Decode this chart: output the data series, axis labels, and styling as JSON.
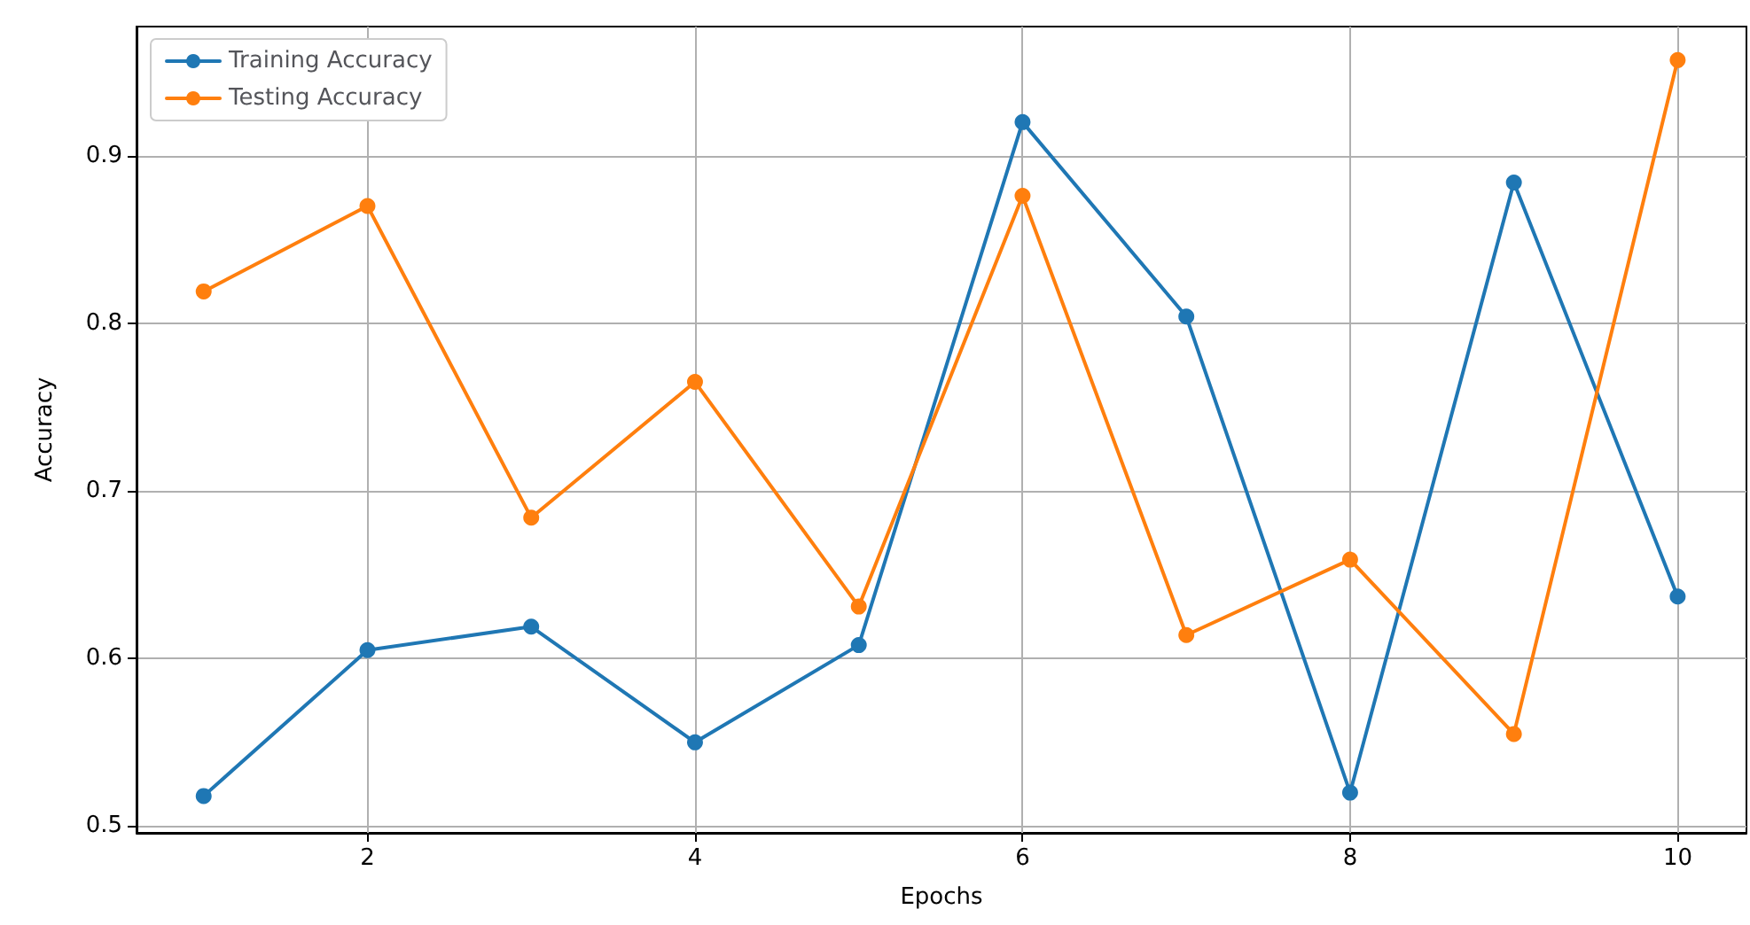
{
  "chart_data": {
    "type": "line",
    "xlabel": "Epochs",
    "ylabel": "Accuracy",
    "x": [
      1,
      2,
      3,
      4,
      5,
      6,
      7,
      8,
      9,
      10
    ],
    "series": [
      {
        "name": "Training Accuracy",
        "color": "#1f77b4",
        "values": [
          0.518,
          0.605,
          0.619,
          0.55,
          0.608,
          0.92,
          0.804,
          0.52,
          0.884,
          0.637
        ]
      },
      {
        "name": "Testing Accuracy",
        "color": "#ff7f0e",
        "values": [
          0.819,
          0.87,
          0.684,
          0.765,
          0.631,
          0.876,
          0.614,
          0.659,
          0.555,
          0.957
        ]
      }
    ],
    "xlim": [
      0.59,
      10.42
    ],
    "xticks": [
      2,
      4,
      6,
      8,
      10
    ],
    "ylim": [
      0.496,
      0.977
    ],
    "yticks": [
      0.5,
      0.6,
      0.7,
      0.8,
      0.9
    ],
    "grid": true,
    "legend": "top left",
    "marker": "circle",
    "line_style": "solid"
  }
}
